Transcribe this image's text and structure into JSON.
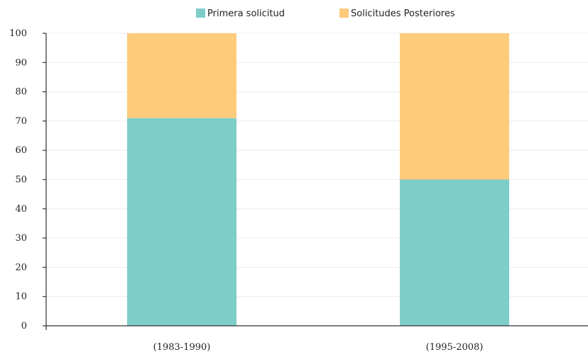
{
  "chart_data": {
    "type": "bar",
    "stacked": true,
    "categories": [
      "(1983-1990)",
      "(1995-2008)"
    ],
    "series": [
      {
        "name": "Primera solicitud",
        "color": "#7ecdc8",
        "values": [
          71,
          50
        ]
      },
      {
        "name": "Solicitudes Posteriores",
        "color": "#fecb7c",
        "values": [
          29,
          50
        ]
      }
    ],
    "yticks": [
      0,
      10,
      20,
      30,
      40,
      50,
      60,
      70,
      80,
      90,
      100
    ],
    "ylim": [
      0,
      100
    ],
    "grid": true,
    "legend_position": "top"
  }
}
